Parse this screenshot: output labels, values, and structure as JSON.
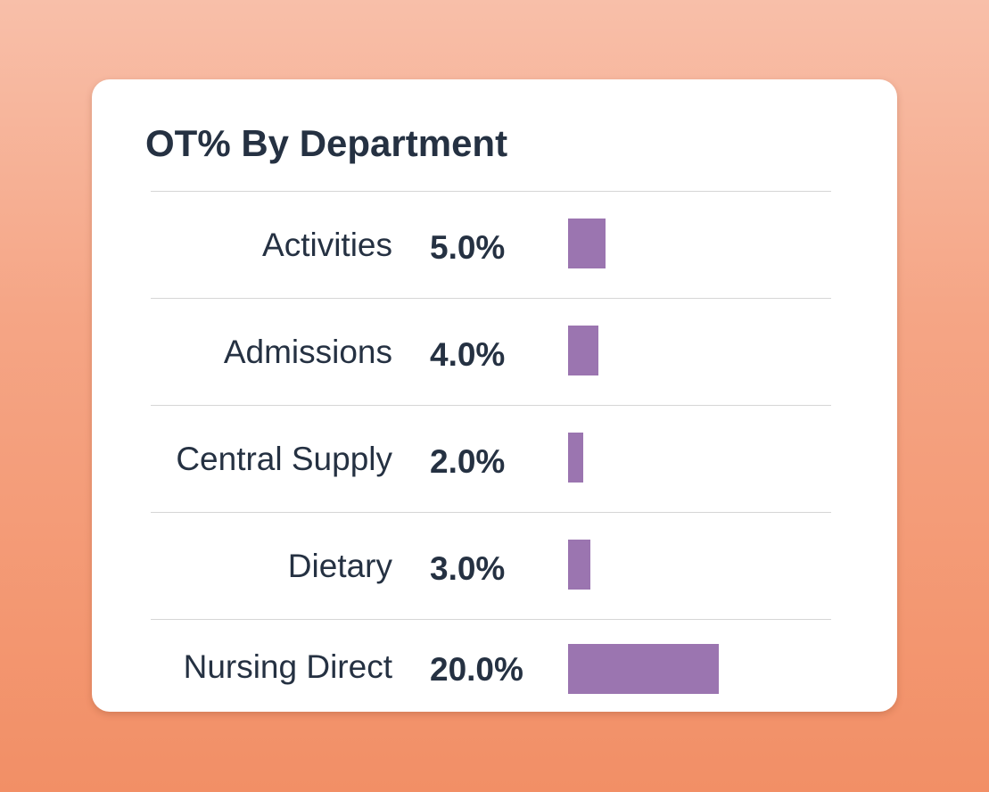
{
  "chart_data": {
    "type": "bar",
    "orientation": "horizontal",
    "title": "OT% By Department",
    "categories": [
      "Activities",
      "Admissions",
      "Central Supply",
      "Dietary",
      "Nursing Direct"
    ],
    "values": [
      5.0,
      4.0,
      2.0,
      3.0,
      20.0
    ],
    "value_labels": [
      "5.0%",
      "4.0%",
      "2.0%",
      "3.0%",
      "20.0%"
    ],
    "xlabel": "",
    "ylabel": "",
    "xlim": [
      0,
      20
    ],
    "bar_color": "#9b75b0"
  },
  "colors": {
    "text": "#253142",
    "bar": "#9b75b0",
    "divider": "#d6d6d6",
    "card": "#ffffff"
  }
}
